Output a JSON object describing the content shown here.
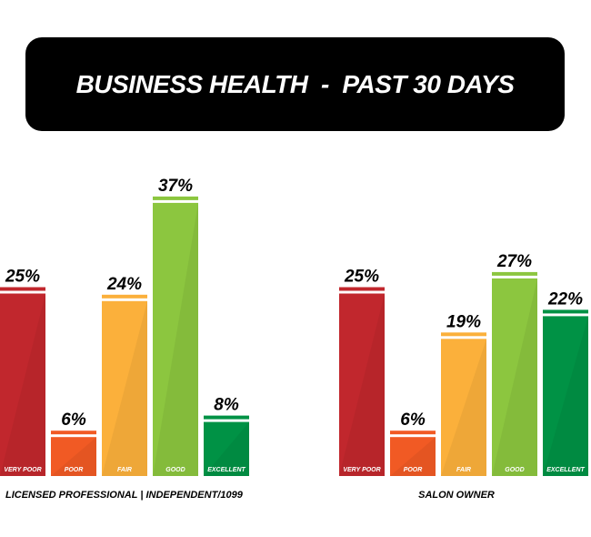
{
  "title": "BUSINESS HEALTH  -  PAST 30 DAYS",
  "chart_data": [
    {
      "type": "bar",
      "caption": "LICENSED PROFESSIONAL | INDEPENDENT/1099",
      "categories": [
        "VERY POOR",
        "POOR",
        "FAIR",
        "GOOD",
        "EXCELLENT"
      ],
      "values": [
        25,
        6,
        24,
        37,
        8
      ],
      "value_labels": [
        "25%",
        "6%",
        "24%",
        "37%",
        "8%"
      ],
      "unit": "%",
      "colors": [
        "#c1272d",
        "#f15a24",
        "#fbb03b",
        "#8cc63f",
        "#009245"
      ]
    },
    {
      "type": "bar",
      "caption": "SALON OWNER",
      "categories": [
        "VERY POOR",
        "POOR",
        "FAIR",
        "GOOD",
        "EXCELLENT"
      ],
      "values": [
        25,
        6,
        19,
        27,
        22
      ],
      "value_labels": [
        "25%",
        "6%",
        "19%",
        "27%",
        "22%"
      ],
      "unit": "%",
      "colors": [
        "#c1272d",
        "#f15a24",
        "#fbb03b",
        "#8cc63f",
        "#009245"
      ]
    }
  ]
}
